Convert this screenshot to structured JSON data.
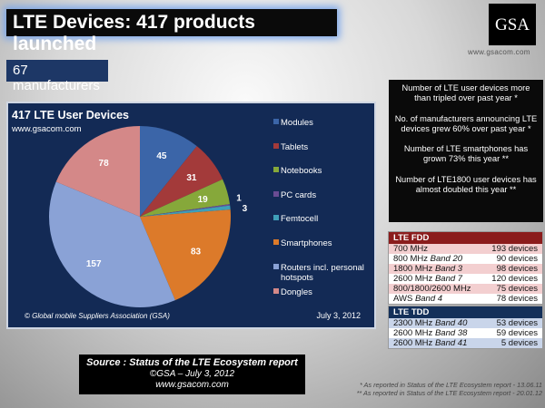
{
  "header": {
    "title": "LTE Devices: 417 products launched",
    "manufacturers": "67 manufacturers",
    "logo_text": "GSA",
    "logo_url": "www.gsacom.com"
  },
  "chart_data": {
    "type": "pie",
    "title": "417 LTE User Devices",
    "subtitle": "www.gsacom.com",
    "copyright": "© Global mobile Suppliers Association (GSA)",
    "date": "July 3, 2012",
    "legend_position": "right",
    "categories": [
      "Modules",
      "Tablets",
      "Notebooks",
      "PC cards",
      "Femtocell",
      "Smartphones",
      "Routers incl. personal hotspots",
      "Dongles"
    ],
    "values": [
      45,
      31,
      19,
      1,
      3,
      83,
      157,
      78
    ],
    "colors": [
      "#3b65a8",
      "#a33a3a",
      "#86a83a",
      "#6a4c93",
      "#3f9fb8",
      "#dc7a2a",
      "#8aa2d6",
      "#d48888"
    ]
  },
  "notes": [
    "Number of LTE user devices more than tripled over past year *",
    "No. of manufacturers announcing LTE devices grew 60% over past year *",
    "Number of LTE smartphones has grown 73% this year **",
    "Number of LTE1800 user devices has almost doubled this year **"
  ],
  "fdd": {
    "title": "LTE FDD",
    "rows": [
      {
        "freq": "700 MHz",
        "band": "",
        "count": "193 devices"
      },
      {
        "freq": "800 MHz",
        "band": "Band 20",
        "count": "90 devices"
      },
      {
        "freq": "1800 MHz",
        "band": "Band 3",
        "count": "98 devices"
      },
      {
        "freq": "2600 MHz",
        "band": "Band 7",
        "count": "120 devices"
      },
      {
        "freq": "800/1800/2600 MHz",
        "band": "",
        "count": "75 devices"
      },
      {
        "freq": "AWS",
        "band": "Band 4",
        "count": "78 devices"
      }
    ]
  },
  "tdd": {
    "title": "LTE TDD",
    "rows": [
      {
        "freq": "2300 MHz",
        "band": "Band 40",
        "count": "53 devices"
      },
      {
        "freq": "2600 MHz",
        "band": "Band 38",
        "count": "59 devices"
      },
      {
        "freq": "2600 MHz",
        "band": "Band 41",
        "count": "5 devices"
      }
    ]
  },
  "source": {
    "line1": "Source : Status of the LTE Ecosystem report",
    "line2": "©GSA – July 3, 2012",
    "line3": "www.gsacom.com"
  },
  "footnotes": [
    "* As reported in Status of the LTE Ecosystem report - 13.06.11",
    "** As reported in Status of the LTE Ecosystem report - 20.01.12"
  ]
}
